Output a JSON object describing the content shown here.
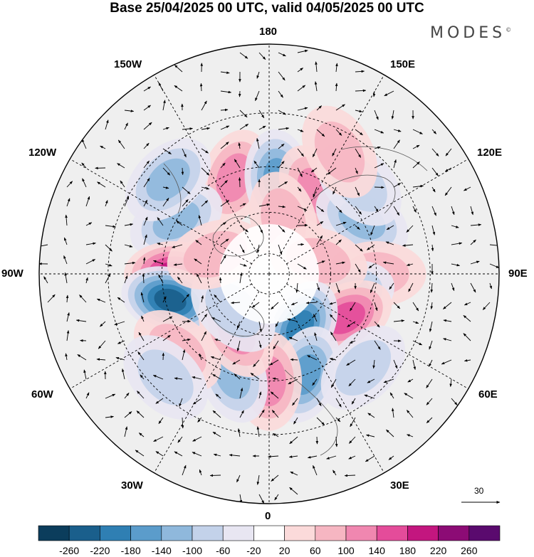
{
  "title": "Base 25/04/2025 00 UTC, valid 04/05/2025 00 UTC",
  "brand": "MODES",
  "brand_mark": "©",
  "longitude_labels": {
    "lon_180": "180",
    "lon_150e": "150E",
    "lon_120e": "120E",
    "lon_90e": "90E",
    "lon_60e": "60E",
    "lon_30e": "30E",
    "lon_0": "0",
    "lon_30w": "30W",
    "lon_60w": "60W",
    "lon_90w": "90W",
    "lon_120w": "120W",
    "lon_150w": "150W"
  },
  "projection": "north polar stereographic",
  "reference_vector": {
    "value": "30",
    "icon": "arrow-right-icon"
  },
  "colorbar": {
    "ticks": [
      "-260",
      "-220",
      "-180",
      "-140",
      "-100",
      "-60",
      "-20",
      "20",
      "60",
      "100",
      "140",
      "180",
      "220",
      "260"
    ],
    "colors": [
      "#0b3d5c",
      "#1a5f8c",
      "#2f7fb3",
      "#5b9ccb",
      "#8fb8dc",
      "#c3d2ea",
      "#e8e6f2",
      "#ffffff",
      "#fbdada",
      "#f6b6c2",
      "#f087b0",
      "#e44c9a",
      "#c3167f",
      "#8c0b75",
      "#5a0a6e"
    ]
  },
  "anomaly_centers": [
    {
      "lon": -160,
      "lat": 42,
      "value": 130
    },
    {
      "lon": 175,
      "lat": 45,
      "value": -170
    },
    {
      "lon": 150,
      "lat": 45,
      "value": 110
    },
    {
      "lon": 165,
      "lat": 63,
      "value": 90
    },
    {
      "lon": -120,
      "lat": 40,
      "value": -120
    },
    {
      "lon": -133,
      "lat": 28,
      "value": -110
    },
    {
      "lon": 120,
      "lat": 40,
      "value": -120
    },
    {
      "lon": 135,
      "lat": 32,
      "value": -60
    },
    {
      "lon": -90,
      "lat": 45,
      "value": 190
    },
    {
      "lon": -75,
      "lat": 42,
      "value": -230
    },
    {
      "lon": 90,
      "lat": 40,
      "value": 70
    },
    {
      "lon": 75,
      "lat": 52,
      "value": -110
    },
    {
      "lon": 105,
      "lat": 65,
      "value": 60
    },
    {
      "lon": 60,
      "lat": 48,
      "value": 170
    },
    {
      "lon": 30,
      "lat": 60,
      "value": -200
    },
    {
      "lon": 20,
      "lat": 40,
      "value": -160
    },
    {
      "lon": 0,
      "lat": 40,
      "value": 130
    },
    {
      "lon": -20,
      "lat": 40,
      "value": -120
    },
    {
      "lon": -30,
      "lat": 58,
      "value": 120
    },
    {
      "lon": -50,
      "lat": 35,
      "value": 80
    },
    {
      "lon": -45,
      "lat": 25,
      "value": -60
    },
    {
      "lon": -45,
      "lat": 65,
      "value": -80
    },
    {
      "lon": 45,
      "lat": 30,
      "value": -60
    },
    {
      "lon": -110,
      "lat": 62,
      "value": 60
    },
    {
      "lon": 150,
      "lat": 27,
      "value": 70
    }
  ]
}
